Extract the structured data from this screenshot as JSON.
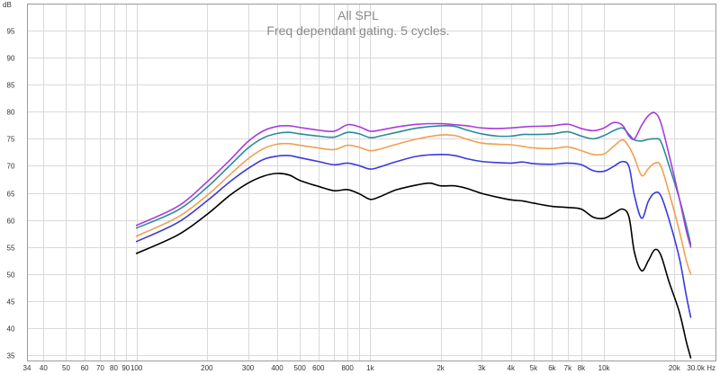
{
  "chart_data": {
    "type": "line",
    "title": "All SPL",
    "subtitle": "Freq dependant gating. 5 cycles.",
    "y_unit": "dB",
    "x_unit": "Hz",
    "x_scale": "log",
    "xlim": [
      34,
      30000
    ],
    "ylim": [
      34,
      100
    ],
    "grid": true,
    "x_ticks": [
      {
        "value": 34,
        "label": "34"
      },
      {
        "value": 40,
        "label": "40"
      },
      {
        "value": 50,
        "label": "50"
      },
      {
        "value": 60,
        "label": "60"
      },
      {
        "value": 70,
        "label": "70"
      },
      {
        "value": 80,
        "label": "80"
      },
      {
        "value": 90,
        "label": "90"
      },
      {
        "value": 100,
        "label": "100"
      },
      {
        "value": 200,
        "label": "200"
      },
      {
        "value": 300,
        "label": "300"
      },
      {
        "value": 400,
        "label": "400"
      },
      {
        "value": 500,
        "label": "500"
      },
      {
        "value": 600,
        "label": "600"
      },
      {
        "value": 800,
        "label": "800"
      },
      {
        "value": 1000,
        "label": "1k"
      },
      {
        "value": 2000,
        "label": "2k"
      },
      {
        "value": 3000,
        "label": "3k"
      },
      {
        "value": 4000,
        "label": "4k"
      },
      {
        "value": 5000,
        "label": "5k"
      },
      {
        "value": 6000,
        "label": "6k"
      },
      {
        "value": 7000,
        "label": "7k"
      },
      {
        "value": 8000,
        "label": "8k"
      },
      {
        "value": 10000,
        "label": "10k"
      },
      {
        "value": 20000,
        "label": "20k"
      },
      {
        "value": 30000,
        "label": "30.0k Hz"
      }
    ],
    "x_minor_grid": [
      700,
      900
    ],
    "y_ticks": [
      {
        "value": 35,
        "label": "35"
      },
      {
        "value": 40,
        "label": "40"
      },
      {
        "value": 45,
        "label": "45"
      },
      {
        "value": 50,
        "label": "50"
      },
      {
        "value": 55,
        "label": "55"
      },
      {
        "value": 60,
        "label": "60"
      },
      {
        "value": 65,
        "label": "65"
      },
      {
        "value": 70,
        "label": "70"
      },
      {
        "value": 75,
        "label": "75"
      },
      {
        "value": 80,
        "label": "80"
      },
      {
        "value": 85,
        "label": "85"
      },
      {
        "value": 90,
        "label": "90"
      },
      {
        "value": 95,
        "label": "95"
      }
    ],
    "series": [
      {
        "color": "#000000",
        "points": [
          [
            100,
            53.8
          ],
          [
            150,
            57.2
          ],
          [
            200,
            61.0
          ],
          [
            250,
            64.5
          ],
          [
            300,
            66.8
          ],
          [
            350,
            68.1
          ],
          [
            400,
            68.6
          ],
          [
            450,
            68.3
          ],
          [
            500,
            67.3
          ],
          [
            600,
            66.2
          ],
          [
            700,
            65.4
          ],
          [
            800,
            65.6
          ],
          [
            900,
            64.8
          ],
          [
            1000,
            63.8
          ],
          [
            1100,
            64.3
          ],
          [
            1300,
            65.6
          ],
          [
            1600,
            66.5
          ],
          [
            1800,
            66.8
          ],
          [
            2000,
            66.3
          ],
          [
            2300,
            66.3
          ],
          [
            2600,
            65.8
          ],
          [
            3000,
            64.9
          ],
          [
            3500,
            64.2
          ],
          [
            4000,
            63.7
          ],
          [
            4500,
            63.5
          ],
          [
            5000,
            63.1
          ],
          [
            6000,
            62.5
          ],
          [
            7000,
            62.3
          ],
          [
            8000,
            62.0
          ],
          [
            9000,
            60.5
          ],
          [
            10000,
            60.3
          ],
          [
            11000,
            61.2
          ],
          [
            12000,
            62.0
          ],
          [
            12800,
            60.5
          ],
          [
            13500,
            54.0
          ],
          [
            14500,
            50.6
          ],
          [
            15500,
            52.5
          ],
          [
            16500,
            54.5
          ],
          [
            17500,
            53.5
          ],
          [
            19000,
            48.5
          ],
          [
            21000,
            43.0
          ],
          [
            22500,
            37.5
          ],
          [
            23500,
            34.5
          ]
        ]
      },
      {
        "color": "#3a3adc",
        "points": [
          [
            100,
            56.0
          ],
          [
            150,
            59.5
          ],
          [
            200,
            63.5
          ],
          [
            250,
            67.0
          ],
          [
            300,
            69.5
          ],
          [
            350,
            71.2
          ],
          [
            400,
            71.8
          ],
          [
            450,
            71.9
          ],
          [
            500,
            71.5
          ],
          [
            600,
            70.8
          ],
          [
            700,
            70.2
          ],
          [
            800,
            70.5
          ],
          [
            900,
            70.0
          ],
          [
            1000,
            69.4
          ],
          [
            1100,
            69.8
          ],
          [
            1300,
            70.8
          ],
          [
            1600,
            71.8
          ],
          [
            2000,
            72.1
          ],
          [
            2300,
            71.9
          ],
          [
            2600,
            71.3
          ],
          [
            3000,
            70.8
          ],
          [
            3500,
            70.6
          ],
          [
            4000,
            70.5
          ],
          [
            4500,
            70.7
          ],
          [
            5000,
            70.4
          ],
          [
            6000,
            70.3
          ],
          [
            7000,
            70.5
          ],
          [
            8000,
            70.2
          ],
          [
            9000,
            69.1
          ],
          [
            10000,
            69.0
          ],
          [
            11000,
            69.9
          ],
          [
            12000,
            70.8
          ],
          [
            12800,
            69.8
          ],
          [
            13500,
            64.5
          ],
          [
            14500,
            60.3
          ],
          [
            15500,
            63.5
          ],
          [
            16500,
            65.0
          ],
          [
            17500,
            64.5
          ],
          [
            19000,
            60.0
          ],
          [
            21000,
            53.0
          ],
          [
            22500,
            46.0
          ],
          [
            23500,
            42.0
          ]
        ]
      },
      {
        "color": "#f0a050",
        "points": [
          [
            100,
            57.0
          ],
          [
            150,
            60.5
          ],
          [
            200,
            64.5
          ],
          [
            250,
            68.3
          ],
          [
            300,
            71.3
          ],
          [
            350,
            73.2
          ],
          [
            400,
            74.0
          ],
          [
            450,
            74.1
          ],
          [
            500,
            73.8
          ],
          [
            600,
            73.3
          ],
          [
            700,
            73.0
          ],
          [
            800,
            73.8
          ],
          [
            900,
            73.4
          ],
          [
            1000,
            72.8
          ],
          [
            1100,
            73.1
          ],
          [
            1300,
            74.0
          ],
          [
            1600,
            75.0
          ],
          [
            2000,
            75.7
          ],
          [
            2300,
            75.6
          ],
          [
            2600,
            74.9
          ],
          [
            3000,
            74.2
          ],
          [
            3500,
            74.0
          ],
          [
            4000,
            73.9
          ],
          [
            4500,
            73.6
          ],
          [
            5000,
            73.3
          ],
          [
            6000,
            73.2
          ],
          [
            7000,
            73.5
          ],
          [
            8000,
            72.8
          ],
          [
            9000,
            72.1
          ],
          [
            10000,
            72.2
          ],
          [
            11000,
            73.6
          ],
          [
            12000,
            74.8
          ],
          [
            12800,
            73.5
          ],
          [
            13500,
            71.5
          ],
          [
            14500,
            68.2
          ],
          [
            15500,
            69.5
          ],
          [
            16500,
            70.5
          ],
          [
            17500,
            70.0
          ],
          [
            19000,
            65.0
          ],
          [
            21000,
            58.0
          ],
          [
            22500,
            52.5
          ],
          [
            23500,
            50.0
          ]
        ]
      },
      {
        "color": "#2a8a9a",
        "points": [
          [
            100,
            58.5
          ],
          [
            150,
            61.8
          ],
          [
            200,
            66.0
          ],
          [
            250,
            70.0
          ],
          [
            300,
            73.3
          ],
          [
            350,
            75.2
          ],
          [
            400,
            76.0
          ],
          [
            450,
            76.2
          ],
          [
            500,
            75.9
          ],
          [
            600,
            75.5
          ],
          [
            700,
            75.3
          ],
          [
            800,
            76.2
          ],
          [
            900,
            75.9
          ],
          [
            1000,
            75.2
          ],
          [
            1100,
            75.5
          ],
          [
            1300,
            76.2
          ],
          [
            1600,
            77.0
          ],
          [
            2000,
            77.4
          ],
          [
            2300,
            77.3
          ],
          [
            2600,
            76.6
          ],
          [
            3000,
            75.9
          ],
          [
            3500,
            75.5
          ],
          [
            4000,
            75.5
          ],
          [
            4500,
            75.8
          ],
          [
            5000,
            75.8
          ],
          [
            6000,
            75.9
          ],
          [
            7000,
            76.3
          ],
          [
            8000,
            75.5
          ],
          [
            9000,
            75.0
          ],
          [
            10000,
            75.6
          ],
          [
            11000,
            76.5
          ],
          [
            12000,
            77.0
          ],
          [
            12800,
            75.8
          ],
          [
            13500,
            74.8
          ],
          [
            14500,
            74.6
          ],
          [
            15500,
            74.9
          ],
          [
            16500,
            75.0
          ],
          [
            17500,
            74.5
          ],
          [
            19000,
            70.0
          ],
          [
            21000,
            64.0
          ],
          [
            22500,
            59.0
          ],
          [
            23500,
            55.5
          ]
        ]
      },
      {
        "color": "#a83cdc",
        "points": [
          [
            100,
            59.0
          ],
          [
            150,
            62.5
          ],
          [
            200,
            67.0
          ],
          [
            250,
            71.0
          ],
          [
            300,
            74.5
          ],
          [
            350,
            76.5
          ],
          [
            400,
            77.3
          ],
          [
            450,
            77.4
          ],
          [
            500,
            77.1
          ],
          [
            600,
            76.6
          ],
          [
            700,
            76.4
          ],
          [
            800,
            77.6
          ],
          [
            900,
            77.2
          ],
          [
            1000,
            76.4
          ],
          [
            1100,
            76.6
          ],
          [
            1300,
            77.2
          ],
          [
            1600,
            77.7
          ],
          [
            2000,
            77.8
          ],
          [
            2300,
            77.6
          ],
          [
            2600,
            77.4
          ],
          [
            3000,
            77.0
          ],
          [
            3500,
            76.9
          ],
          [
            4000,
            77.0
          ],
          [
            4500,
            77.2
          ],
          [
            5000,
            77.3
          ],
          [
            6000,
            77.4
          ],
          [
            7000,
            77.7
          ],
          [
            8000,
            76.9
          ],
          [
            9000,
            76.5
          ],
          [
            10000,
            77.0
          ],
          [
            11000,
            78.0
          ],
          [
            12000,
            77.5
          ],
          [
            12800,
            75.5
          ],
          [
            13500,
            75.0
          ],
          [
            14500,
            77.5
          ],
          [
            15500,
            79.3
          ],
          [
            16500,
            79.8
          ],
          [
            17500,
            78.0
          ],
          [
            19000,
            72.0
          ],
          [
            21000,
            64.0
          ],
          [
            22500,
            58.0
          ],
          [
            23500,
            55.0
          ]
        ]
      }
    ]
  }
}
